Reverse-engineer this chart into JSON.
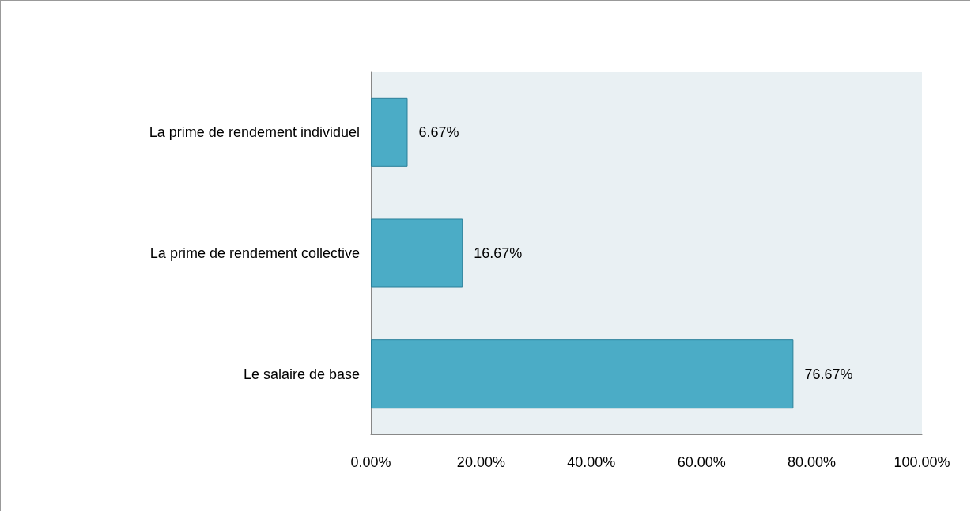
{
  "chart_data": {
    "type": "bar",
    "orientation": "horizontal",
    "categories": [
      "La prime de rendement individuel",
      "La prime de rendement collective",
      "Le salaire de base"
    ],
    "values": [
      6.67,
      16.67,
      76.67
    ],
    "value_labels": [
      "6.67%",
      "16.67%",
      "76.67%"
    ],
    "color": "#4bacc6",
    "xlim": [
      0,
      100
    ],
    "xticks": [
      {
        "value": 0,
        "label": "0.00%"
      },
      {
        "value": 20,
        "label": "20.00%"
      },
      {
        "value": 40,
        "label": "40.00%"
      },
      {
        "value": 60,
        "label": "60.00%"
      },
      {
        "value": 80,
        "label": "80.00%"
      },
      {
        "value": 100,
        "label": "100.00%"
      }
    ],
    "grid": false
  }
}
